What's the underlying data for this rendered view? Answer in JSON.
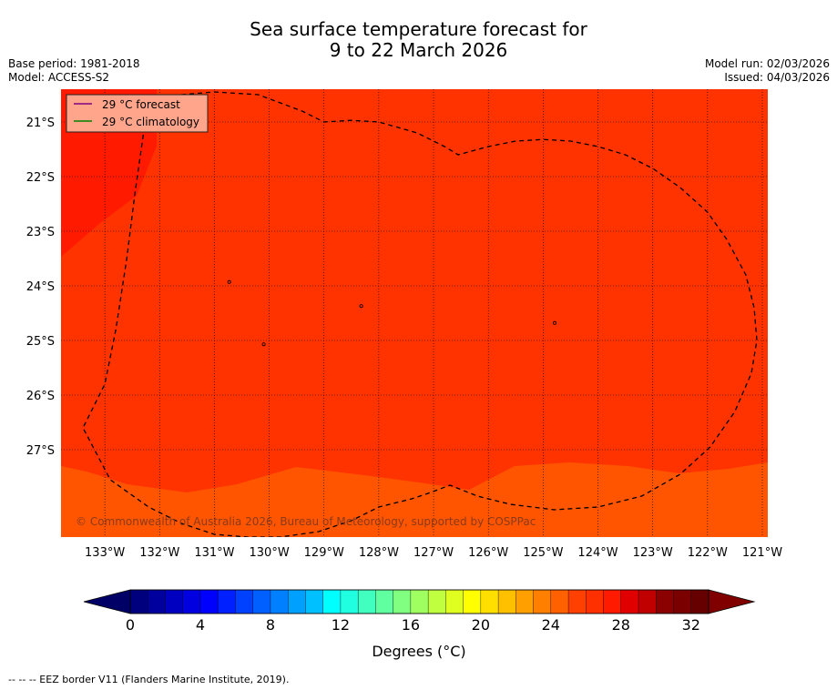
{
  "chart_data": {
    "type": "heatmap",
    "title_line1": "Sea surface temperature forecast for",
    "title_line2": "9 to 22 March 2026",
    "base_period": "Base period: 1981-2018",
    "model": "Model: ACCESS-S2",
    "model_run": "Model run: 02/03/2026",
    "issued": "Issued: 04/03/2026",
    "x_ticks": [
      {
        "value": -133,
        "label": "133°W"
      },
      {
        "value": -132,
        "label": "132°W"
      },
      {
        "value": -131,
        "label": "131°W"
      },
      {
        "value": -130,
        "label": "130°W"
      },
      {
        "value": -129,
        "label": "129°W"
      },
      {
        "value": -128,
        "label": "128°W"
      },
      {
        "value": -127,
        "label": "127°W"
      },
      {
        "value": -126,
        "label": "126°W"
      },
      {
        "value": -125,
        "label": "125°W"
      },
      {
        "value": -124,
        "label": "124°W"
      },
      {
        "value": -123,
        "label": "123°W"
      },
      {
        "value": -122,
        "label": "122°W"
      },
      {
        "value": -121,
        "label": "121°W"
      }
    ],
    "y_ticks": [
      {
        "value": -21,
        "label": "21°S"
      },
      {
        "value": -22,
        "label": "22°S"
      },
      {
        "value": -23,
        "label": "23°S"
      },
      {
        "value": -24,
        "label": "24°S"
      },
      {
        "value": -25,
        "label": "25°S"
      },
      {
        "value": -26,
        "label": "26°S"
      },
      {
        "value": -27,
        "label": "27°S"
      }
    ],
    "xlim": [
      -133.8,
      -120.9
    ],
    "ylim": [
      -28.6,
      -20.4
    ],
    "legend": {
      "position": "top-left",
      "entries": [
        {
          "label": "29 °C  forecast",
          "color": "#800080"
        },
        {
          "label": "29 °C  climatology",
          "color": "#008000"
        }
      ]
    },
    "copyright": "© Commonwealth of Australia 2026, Bureau of Meteorology, supported by COSPPac",
    "colorbar": {
      "label": "Degrees (°C)",
      "min": 0,
      "max": 33,
      "step": 1,
      "tick_values": [
        0,
        4,
        8,
        12,
        16,
        20,
        24,
        28,
        32
      ],
      "tick_labels": [
        "0",
        "4",
        "8",
        "12",
        "16",
        "20",
        "24",
        "28",
        "32"
      ],
      "colors": [
        "#00007f",
        "#00009f",
        "#0000c0",
        "#0000e0",
        "#0000ff",
        "#0020ff",
        "#0040ff",
        "#0060ff",
        "#0080ff",
        "#00a0ff",
        "#00c0ff",
        "#00ffff",
        "#20ffdf",
        "#40ffbf",
        "#60ff9f",
        "#80ff80",
        "#9fff60",
        "#bfff40",
        "#dfff20",
        "#ffff00",
        "#ffdf00",
        "#ffc000",
        "#ffa000",
        "#ff8000",
        "#ff6000",
        "#ff4000",
        "#ff3000",
        "#ff1a00",
        "#e00000",
        "#c00000",
        "#8b0000",
        "#7a0000",
        "#660000"
      ],
      "under_color": "#000066",
      "over_color": "#800000"
    },
    "field_regions": [
      {
        "name": "sst-28-29-region",
        "value_range": "28-29 °C",
        "color": "#ff3300"
      },
      {
        "name": "sst-29-30-region",
        "value_range": "29-30 °C",
        "color": "#ff1a00"
      },
      {
        "name": "sst-27-28-region",
        "value_range": "27-28 °C",
        "color": "#ff5500"
      }
    ],
    "eez_border": {
      "style": "dashed",
      "points": [
        [
          -132.2,
          -20.55
        ],
        [
          -131.0,
          -20.45
        ],
        [
          -130.2,
          -20.5
        ],
        [
          -129.4,
          -20.8
        ],
        [
          -129.0,
          -21.0
        ],
        [
          -128.5,
          -20.97
        ],
        [
          -128.0,
          -21.0
        ],
        [
          -127.3,
          -21.2
        ],
        [
          -126.8,
          -21.45
        ],
        [
          -126.55,
          -21.6
        ],
        [
          -126.0,
          -21.45
        ],
        [
          -125.5,
          -21.35
        ],
        [
          -125.0,
          -21.32
        ],
        [
          -124.5,
          -21.35
        ],
        [
          -124.0,
          -21.45
        ],
        [
          -123.5,
          -21.6
        ],
        [
          -123.0,
          -21.85
        ],
        [
          -122.5,
          -22.2
        ],
        [
          -122.0,
          -22.65
        ],
        [
          -121.65,
          -23.15
        ],
        [
          -121.3,
          -23.8
        ],
        [
          -121.15,
          -24.4
        ],
        [
          -121.1,
          -25.0
        ],
        [
          -121.2,
          -25.6
        ],
        [
          -121.5,
          -26.3
        ],
        [
          -121.95,
          -26.95
        ],
        [
          -122.5,
          -27.45
        ],
        [
          -123.2,
          -27.85
        ],
        [
          -124.0,
          -28.05
        ],
        [
          -124.8,
          -28.1
        ],
        [
          -125.6,
          -28.0
        ],
        [
          -126.2,
          -27.85
        ],
        [
          -126.7,
          -27.65
        ],
        [
          -127.1,
          -27.8
        ],
        [
          -127.4,
          -27.9
        ],
        [
          -128.0,
          -28.05
        ],
        [
          -128.5,
          -28.3
        ],
        [
          -129.1,
          -28.5
        ],
        [
          -129.8,
          -28.6
        ],
        [
          -130.4,
          -28.6
        ],
        [
          -131.0,
          -28.55
        ],
        [
          -131.6,
          -28.35
        ],
        [
          -132.2,
          -28.05
        ],
        [
          -132.9,
          -27.55
        ],
        [
          -133.4,
          -26.6
        ],
        [
          -133.0,
          -25.8
        ],
        [
          -132.8,
          -24.8
        ],
        [
          -132.6,
          -23.5
        ],
        [
          -132.45,
          -22.3
        ],
        [
          -132.2,
          -20.55
        ]
      ]
    },
    "islands": [
      {
        "name": "island-ducie",
        "lon": -124.79,
        "lat": -24.68
      },
      {
        "name": "island-henderson",
        "lon": -128.32,
        "lat": -24.37
      },
      {
        "name": "island-pitcairn",
        "lon": -130.1,
        "lat": -25.07
      },
      {
        "name": "island-oeno",
        "lon": -130.73,
        "lat": -23.93
      }
    ]
  },
  "footnote": "--  --  -- EEZ border V11 (Flanders Marine Institute, 2019)."
}
